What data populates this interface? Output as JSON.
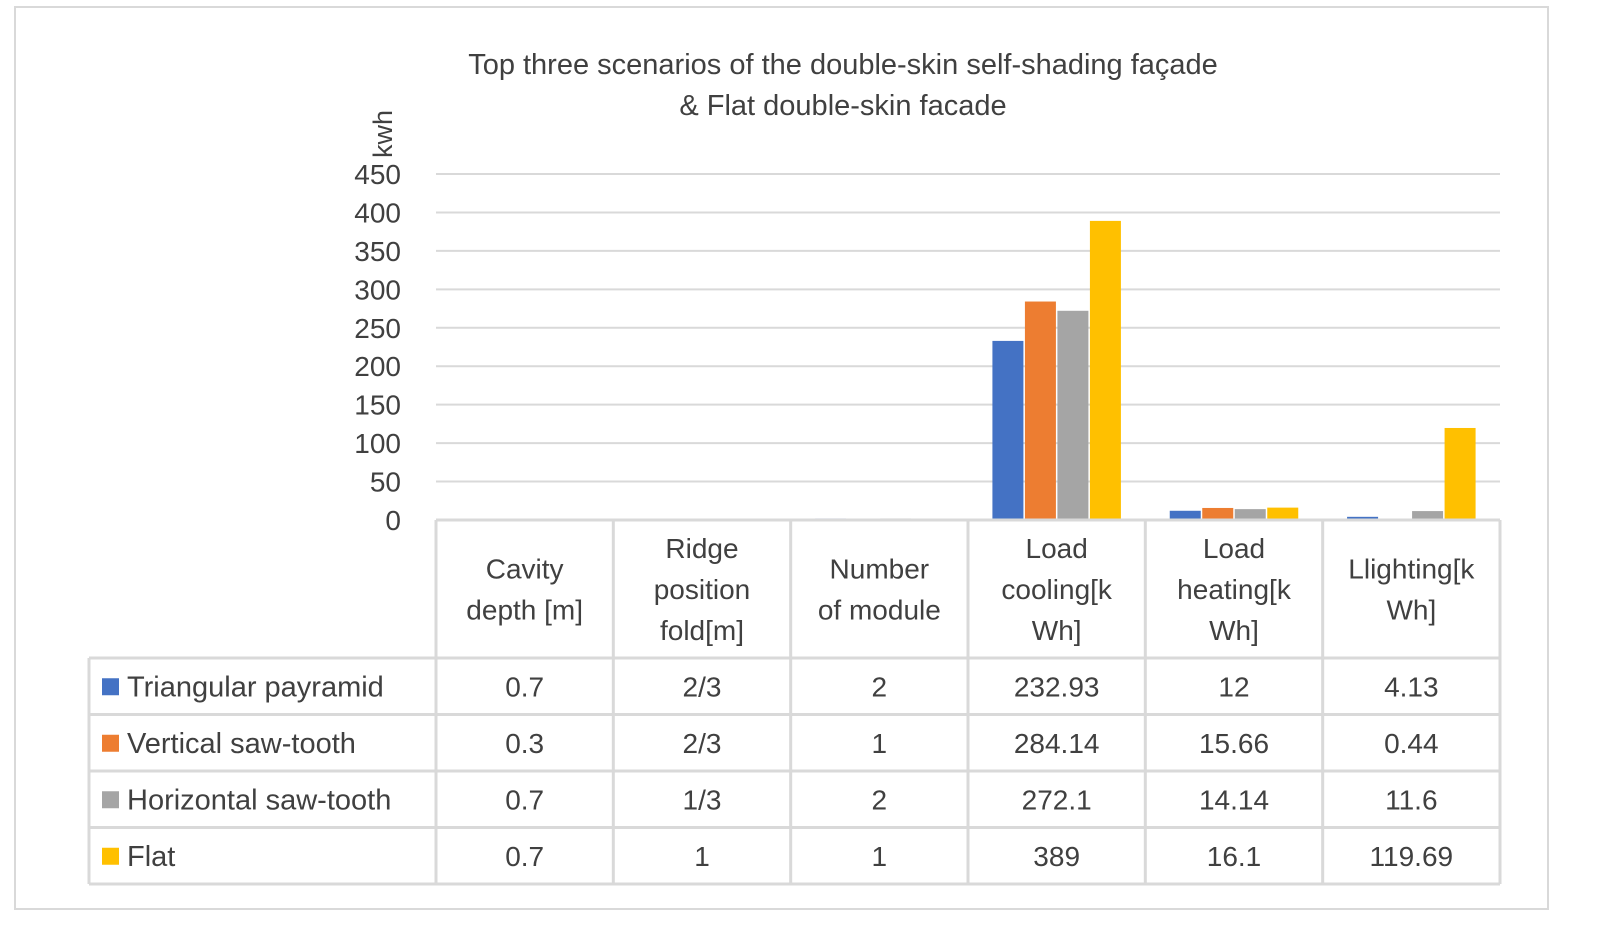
{
  "chart_data": {
    "type": "bar",
    "title": "Top three scenarios of the double-skin self-shading façade",
    "title_line2": "& Flat double-skin facade",
    "ylabel": "kwh",
    "xlabel": "",
    "ylim": [
      0,
      450
    ],
    "yticks": [
      0,
      50,
      100,
      150,
      200,
      250,
      300,
      350,
      400,
      450
    ],
    "grid": true,
    "legend": "data-table",
    "categories": [
      [
        "Cavity",
        "depth [m]"
      ],
      [
        "Ridge",
        "position",
        "fold[m]"
      ],
      [
        "Number",
        "of module"
      ],
      [
        "Load",
        "cooling[k",
        "Wh]"
      ],
      [
        "Load",
        "heating[k",
        "Wh]"
      ],
      [
        "Llighting[k",
        "Wh]"
      ]
    ],
    "series": [
      {
        "name": "Triangular payramid",
        "color": "#4472C4",
        "values": [
          0.7,
          0.667,
          2,
          232.93,
          12,
          4.13
        ],
        "labels": [
          "0.7",
          "2/3",
          "2",
          "232.93",
          "12",
          "4.13"
        ]
      },
      {
        "name": "Vertical saw-tooth",
        "color": "#ED7D31",
        "values": [
          0.3,
          0.667,
          1,
          284.14,
          15.66,
          0.44
        ],
        "labels": [
          "0.3",
          "2/3",
          "1",
          "284.14",
          "15.66",
          "0.44"
        ]
      },
      {
        "name": "Horizontal saw-tooth",
        "color": "#A5A5A5",
        "values": [
          0.7,
          0.333,
          2,
          272.1,
          14.14,
          11.6
        ],
        "labels": [
          "0.7",
          "1/3",
          "2",
          "272.1",
          "14.14",
          "11.6"
        ]
      },
      {
        "name": "Flat",
        "color": "#FFC000",
        "values": [
          0.7,
          1,
          1,
          389,
          16.1,
          119.69
        ],
        "labels": [
          "0.7",
          "1",
          "1",
          "389",
          "16.1",
          "119.69"
        ]
      }
    ]
  }
}
